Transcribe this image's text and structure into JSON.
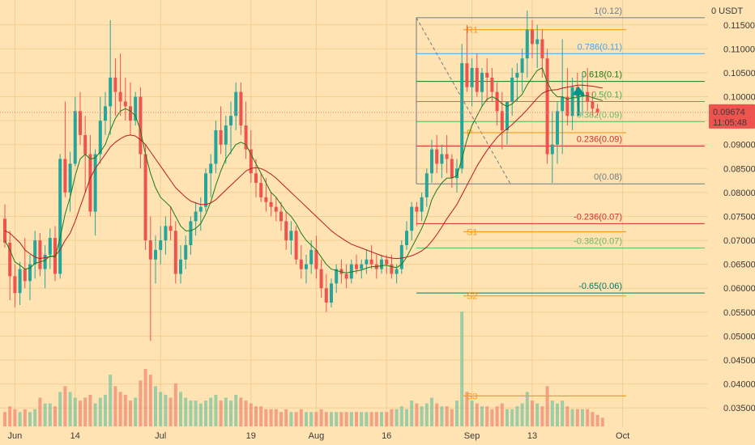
{
  "chart_data": {
    "type": "candlestick",
    "quote_currency": "USDT",
    "y_range": [
      0.033,
      0.1175
    ],
    "y_ticks": [
      "0.11500",
      "0.11000",
      "0.10500",
      "0.10000",
      "0.09500",
      "0.09000",
      "0.08500",
      "0.08000",
      "0.07500",
      "0.07000",
      "0.06500",
      "0.06000",
      "0.05500",
      "0.05000",
      "0.04500",
      "0.04000",
      "0.03500"
    ],
    "y_tick_values": [
      0.115,
      0.11,
      0.105,
      0.1,
      0.095,
      0.09,
      0.085,
      0.08,
      0.075,
      0.07,
      0.065,
      0.06,
      0.055,
      0.05,
      0.045,
      0.04,
      0.035
    ],
    "x_ticks": [
      {
        "label": "Jun",
        "day": 2
      },
      {
        "label": "14",
        "day": 14
      },
      {
        "label": "Jul",
        "day": 31
      },
      {
        "label": "19",
        "day": 49
      },
      {
        "label": "Aug",
        "day": 62
      },
      {
        "label": "16",
        "day": 76
      },
      {
        "label": "Sep",
        "day": 93
      },
      {
        "label": "13",
        "day": 105
      },
      {
        "label": "Oct",
        "day": 123
      }
    ],
    "current_price": {
      "value": 0.09674,
      "label": "0.09674",
      "countdown": "11:05:48"
    },
    "colors": {
      "up": "#26a69a",
      "down": "#ef5350",
      "fast_ma": "#1b7a1b",
      "slow_ma": "#b71c1c",
      "pivot": "#f59c1a",
      "fib_base": "#6f7b88",
      "background": "#ffe3b3"
    },
    "candles": [
      [
        0.0745,
        0.0775,
        0.0685,
        0.0695
      ],
      [
        0.0695,
        0.072,
        0.0575,
        0.0625
      ],
      [
        0.0625,
        0.065,
        0.056,
        0.059
      ],
      [
        0.059,
        0.0655,
        0.0565,
        0.064
      ],
      [
        0.064,
        0.0705,
        0.06,
        0.0615
      ],
      [
        0.0615,
        0.067,
        0.0575,
        0.065
      ],
      [
        0.065,
        0.072,
        0.062,
        0.07
      ],
      [
        0.07,
        0.0715,
        0.0625,
        0.064
      ],
      [
        0.064,
        0.069,
        0.06,
        0.067
      ],
      [
        0.067,
        0.0725,
        0.064,
        0.0705
      ],
      [
        0.0705,
        0.073,
        0.0615,
        0.063
      ],
      [
        0.063,
        0.088,
        0.062,
        0.087
      ],
      [
        0.087,
        0.099,
        0.079,
        0.08
      ],
      [
        0.08,
        0.0885,
        0.076,
        0.086
      ],
      [
        0.086,
        0.1,
        0.0855,
        0.097
      ],
      [
        0.097,
        0.101,
        0.09,
        0.092
      ],
      [
        0.092,
        0.096,
        0.08,
        0.088
      ],
      [
        0.088,
        0.092,
        0.075,
        0.076
      ],
      [
        0.076,
        0.089,
        0.071,
        0.088
      ],
      [
        0.088,
        0.1,
        0.086,
        0.095
      ],
      [
        0.095,
        0.101,
        0.092,
        0.098
      ],
      [
        0.098,
        0.116,
        0.092,
        0.104
      ],
      [
        0.104,
        0.108,
        0.096,
        0.101
      ],
      [
        0.101,
        0.109,
        0.096,
        0.099
      ],
      [
        0.099,
        0.104,
        0.095,
        0.098
      ],
      [
        0.098,
        0.103,
        0.092,
        0.095
      ],
      [
        0.095,
        0.101,
        0.094,
        0.1
      ],
      [
        0.1,
        0.102,
        0.085,
        0.088
      ],
      [
        0.088,
        0.09,
        0.068,
        0.07
      ],
      [
        0.07,
        0.075,
        0.049,
        0.066
      ],
      [
        0.066,
        0.071,
        0.061,
        0.068
      ],
      [
        0.068,
        0.073,
        0.065,
        0.07
      ],
      [
        0.07,
        0.075,
        0.067,
        0.073
      ],
      [
        0.073,
        0.077,
        0.07,
        0.072
      ],
      [
        0.072,
        0.074,
        0.061,
        0.063
      ],
      [
        0.063,
        0.069,
        0.061,
        0.066
      ],
      [
        0.066,
        0.071,
        0.064,
        0.069
      ],
      [
        0.069,
        0.075,
        0.067,
        0.074
      ],
      [
        0.074,
        0.078,
        0.071,
        0.076
      ],
      [
        0.076,
        0.079,
        0.072,
        0.077
      ],
      [
        0.077,
        0.085,
        0.076,
        0.084
      ],
      [
        0.084,
        0.088,
        0.079,
        0.086
      ],
      [
        0.086,
        0.095,
        0.084,
        0.093
      ],
      [
        0.093,
        0.098,
        0.088,
        0.09
      ],
      [
        0.09,
        0.096,
        0.086,
        0.094
      ],
      [
        0.094,
        0.099,
        0.088,
        0.096
      ],
      [
        0.096,
        0.103,
        0.093,
        0.101
      ],
      [
        0.101,
        0.103,
        0.092,
        0.094
      ],
      [
        0.094,
        0.099,
        0.087,
        0.089
      ],
      [
        0.089,
        0.093,
        0.082,
        0.084
      ],
      [
        0.084,
        0.087,
        0.079,
        0.082
      ],
      [
        0.082,
        0.084,
        0.078,
        0.079
      ],
      [
        0.079,
        0.083,
        0.076,
        0.078
      ],
      [
        0.078,
        0.08,
        0.075,
        0.077
      ],
      [
        0.077,
        0.079,
        0.074,
        0.076
      ],
      [
        0.076,
        0.078,
        0.072,
        0.074
      ],
      [
        0.074,
        0.076,
        0.068,
        0.07
      ],
      [
        0.07,
        0.074,
        0.067,
        0.072
      ],
      [
        0.072,
        0.073,
        0.065,
        0.066
      ],
      [
        0.066,
        0.069,
        0.062,
        0.064
      ],
      [
        0.064,
        0.067,
        0.061,
        0.065
      ],
      [
        0.065,
        0.07,
        0.063,
        0.068
      ],
      [
        0.068,
        0.071,
        0.062,
        0.064
      ],
      [
        0.064,
        0.066,
        0.058,
        0.06
      ],
      [
        0.06,
        0.063,
        0.055,
        0.057
      ],
      [
        0.057,
        0.062,
        0.056,
        0.061
      ],
      [
        0.061,
        0.065,
        0.059,
        0.064
      ],
      [
        0.064,
        0.066,
        0.061,
        0.063
      ],
      [
        0.063,
        0.065,
        0.06,
        0.062
      ],
      [
        0.062,
        0.066,
        0.061,
        0.065
      ],
      [
        0.065,
        0.067,
        0.063,
        0.064
      ],
      [
        0.064,
        0.066,
        0.062,
        0.065
      ],
      [
        0.065,
        0.068,
        0.063,
        0.066
      ],
      [
        0.066,
        0.069,
        0.064,
        0.065
      ],
      [
        0.065,
        0.067,
        0.062,
        0.064
      ],
      [
        0.064,
        0.067,
        0.063,
        0.066
      ],
      [
        0.066,
        0.067,
        0.063,
        0.065
      ],
      [
        0.065,
        0.067,
        0.062,
        0.063
      ],
      [
        0.063,
        0.065,
        0.061,
        0.064
      ],
      [
        0.064,
        0.07,
        0.063,
        0.069
      ],
      [
        0.069,
        0.074,
        0.068,
        0.072
      ],
      [
        0.072,
        0.078,
        0.07,
        0.077
      ],
      [
        0.077,
        0.078,
        0.073,
        0.076
      ],
      [
        0.076,
        0.08,
        0.074,
        0.079
      ],
      [
        0.079,
        0.085,
        0.077,
        0.084
      ],
      [
        0.084,
        0.091,
        0.082,
        0.089
      ],
      [
        0.089,
        0.092,
        0.084,
        0.086
      ],
      [
        0.086,
        0.09,
        0.083,
        0.088
      ],
      [
        0.088,
        0.092,
        0.084,
        0.087
      ],
      [
        0.087,
        0.088,
        0.081,
        0.083
      ],
      [
        0.083,
        0.087,
        0.08,
        0.085
      ],
      [
        0.085,
        0.111,
        0.084,
        0.107
      ],
      [
        0.107,
        0.115,
        0.101,
        0.102
      ],
      [
        0.102,
        0.108,
        0.098,
        0.106
      ],
      [
        0.106,
        0.109,
        0.1,
        0.101
      ],
      [
        0.101,
        0.106,
        0.098,
        0.105
      ],
      [
        0.105,
        0.108,
        0.099,
        0.104
      ],
      [
        0.104,
        0.106,
        0.099,
        0.101
      ],
      [
        0.101,
        0.103,
        0.094,
        0.097
      ],
      [
        0.097,
        0.101,
        0.089,
        0.093
      ],
      [
        0.093,
        0.099,
        0.09,
        0.099
      ],
      [
        0.099,
        0.106,
        0.096,
        0.104
      ],
      [
        0.104,
        0.107,
        0.099,
        0.105
      ],
      [
        0.105,
        0.11,
        0.101,
        0.108
      ],
      [
        0.108,
        0.118,
        0.104,
        0.114
      ],
      [
        0.114,
        0.116,
        0.108,
        0.111
      ],
      [
        0.111,
        0.115,
        0.106,
        0.112
      ],
      [
        0.112,
        0.114,
        0.104,
        0.108
      ],
      [
        0.108,
        0.11,
        0.086,
        0.088
      ],
      [
        0.088,
        0.097,
        0.082,
        0.09
      ],
      [
        0.09,
        0.099,
        0.086,
        0.097
      ],
      [
        0.097,
        0.112,
        0.088,
        0.1
      ],
      [
        0.1,
        0.106,
        0.094,
        0.096
      ],
      [
        0.096,
        0.104,
        0.093,
        0.102
      ],
      [
        0.102,
        0.105,
        0.098,
        0.1
      ],
      [
        0.1,
        0.105,
        0.096,
        0.101
      ],
      [
        0.101,
        0.106,
        0.097,
        0.099
      ],
      [
        0.099,
        0.101,
        0.096,
        0.0975
      ],
      [
        0.0975,
        0.0985,
        0.096,
        0.0967
      ]
    ],
    "volume": [
      5,
      7,
      6,
      5,
      6,
      5,
      6,
      10,
      8,
      8,
      7,
      12,
      14,
      12,
      10,
      9,
      10,
      11,
      8,
      10,
      11,
      18,
      14,
      12,
      11,
      9,
      10,
      16,
      20,
      18,
      14,
      12,
      11,
      10,
      15,
      12,
      10,
      9,
      9,
      8,
      9,
      10,
      11,
      9,
      10,
      9,
      11,
      10,
      9,
      8,
      7,
      7,
      6,
      6,
      6,
      5,
      6,
      5,
      5,
      6,
      5,
      5,
      5,
      6,
      5,
      5,
      5,
      5,
      5,
      5,
      5,
      5,
      5,
      5,
      5,
      5,
      5,
      6,
      6,
      7,
      6,
      9,
      8,
      7,
      8,
      10,
      8,
      7,
      7,
      6,
      9,
      40,
      12,
      9,
      8,
      7,
      7,
      6,
      7,
      8,
      6,
      6,
      7,
      8,
      12,
      9,
      8,
      7,
      14,
      9,
      8,
      9,
      7,
      6,
      6,
      6,
      6,
      5,
      4,
      3
    ],
    "ema_fast": [
      0.07,
      0.068,
      0.0655,
      0.0648,
      0.064,
      0.0642,
      0.0652,
      0.0655,
      0.0658,
      0.0668,
      0.0665,
      0.0705,
      0.0755,
      0.079,
      0.0835,
      0.087,
      0.088,
      0.087,
      0.0872,
      0.0885,
      0.09,
      0.093,
      0.0955,
      0.097,
      0.0975,
      0.097,
      0.096,
      0.093,
      0.088,
      0.084,
      0.081,
      0.079,
      0.078,
      0.077,
      0.075,
      0.073,
      0.072,
      0.072,
      0.0725,
      0.0735,
      0.0755,
      0.078,
      0.0815,
      0.0845,
      0.087,
      0.0885,
      0.09,
      0.0905,
      0.09,
      0.088,
      0.086,
      0.084,
      0.082,
      0.08,
      0.079,
      0.0775,
      0.076,
      0.075,
      0.0735,
      0.0715,
      0.07,
      0.069,
      0.068,
      0.0665,
      0.065,
      0.064,
      0.0637,
      0.0634,
      0.0632,
      0.0634,
      0.0636,
      0.0638,
      0.0642,
      0.0645,
      0.0645,
      0.0647,
      0.0648,
      0.0645,
      0.0643,
      0.065,
      0.0665,
      0.0685,
      0.0705,
      0.0725,
      0.075,
      0.0785,
      0.0805,
      0.082,
      0.083,
      0.083,
      0.0835,
      0.087,
      0.091,
      0.094,
      0.096,
      0.098,
      0.0995,
      0.1,
      0.0995,
      0.0985,
      0.098,
      0.0985,
      0.0995,
      0.1005,
      0.1025,
      0.104,
      0.1055,
      0.106,
      0.103,
      0.101,
      0.1,
      0.1,
      0.0995,
      0.0998,
      0.0998,
      0.1002,
      0.1002,
      0.0998,
      0.0995,
      0.0992
    ],
    "ma_slow": [
      0.072,
      0.0715,
      0.0705,
      0.0695,
      0.068,
      0.0672,
      0.0665,
      0.0662,
      0.0664,
      0.0666,
      0.0668,
      0.068,
      0.07,
      0.0715,
      0.074,
      0.077,
      0.08,
      0.083,
      0.085,
      0.0865,
      0.088,
      0.0895,
      0.0905,
      0.0912,
      0.0918,
      0.092,
      0.0918,
      0.091,
      0.09,
      0.0885,
      0.087,
      0.0855,
      0.084,
      0.0825,
      0.081,
      0.08,
      0.079,
      0.0782,
      0.0778,
      0.0775,
      0.0775,
      0.0778,
      0.0785,
      0.0795,
      0.0805,
      0.0815,
      0.0825,
      0.0835,
      0.0845,
      0.085,
      0.0852,
      0.085,
      0.0845,
      0.0838,
      0.083,
      0.082,
      0.081,
      0.08,
      0.079,
      0.078,
      0.077,
      0.076,
      0.075,
      0.074,
      0.073,
      0.072,
      0.0712,
      0.0705,
      0.0698,
      0.0692,
      0.0688,
      0.0684,
      0.068,
      0.0676,
      0.0672,
      0.0668,
      0.0665,
      0.0663,
      0.0662,
      0.0663,
      0.0665,
      0.0668,
      0.0672,
      0.0678,
      0.0686,
      0.0698,
      0.0712,
      0.0728,
      0.0745,
      0.076,
      0.0775,
      0.0795,
      0.0815,
      0.0835,
      0.0855,
      0.0872,
      0.0888,
      0.0902,
      0.0915,
      0.0925,
      0.0933,
      0.0942,
      0.0952,
      0.0962,
      0.0973,
      0.0985,
      0.0997,
      0.1007,
      0.1012,
      0.1014,
      0.1015,
      0.1018,
      0.102,
      0.1022,
      0.1024,
      0.1024,
      0.1023,
      0.1022,
      0.102,
      0.1018
    ],
    "fib_levels": [
      {
        "label": "1(0.12)",
        "value": 0.1165,
        "color": "#6f7b88"
      },
      {
        "label": "0.786(0.11)",
        "value": 0.109,
        "color": "#42a5f5"
      },
      {
        "label": "0.618(0.1)",
        "value": 0.1032,
        "color": "#1b7a1b"
      },
      {
        "label": "0.5(0.1)",
        "value": 0.099,
        "color": "#4caf50"
      },
      {
        "label": "0.382(0.09)",
        "value": 0.0948,
        "color": "#66bb6a"
      },
      {
        "label": "0.236(0.09)",
        "value": 0.0897,
        "color": "#d32f2f"
      },
      {
        "label": "0(0.08)",
        "value": 0.0818,
        "color": "#6f7b88"
      },
      {
        "label": "-0.236(0.07)",
        "value": 0.0735,
        "color": "#d32f2f"
      },
      {
        "label": "-0.382(0.07)",
        "value": 0.0684,
        "color": "#66bb6a"
      },
      {
        "label": "-0.65(0.06)",
        "value": 0.059,
        "color": "#00796b"
      }
    ],
    "pivot_levels": [
      {
        "label": "R1",
        "value": 0.114
      },
      {
        "label": "P",
        "value": 0.0925
      },
      {
        "label": "S1",
        "value": 0.0718
      },
      {
        "label": "S2",
        "value": 0.0584
      },
      {
        "label": "S3",
        "value": 0.0375
      }
    ]
  }
}
